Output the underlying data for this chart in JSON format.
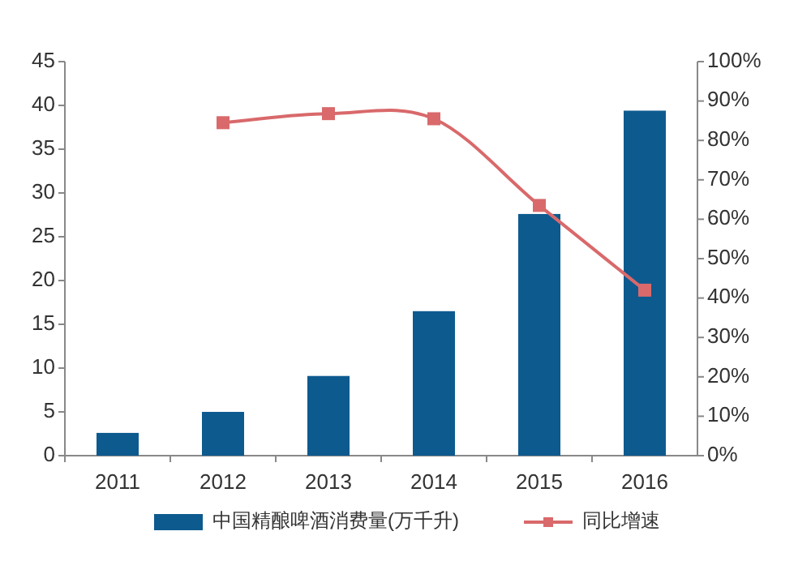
{
  "chart_data": {
    "type": "bar",
    "categories": [
      "2011",
      "2012",
      "2013",
      "2014",
      "2015",
      "2016"
    ],
    "series": [
      {
        "name": "中国精酿啤酒消费量(万千升)",
        "color": "#0d5a8f",
        "values": [
          2.6,
          5.0,
          9.1,
          16.5,
          27.6,
          39.4
        ]
      },
      {
        "name": "同比增速",
        "type": "line",
        "axis": "y2",
        "color": "#d9696b",
        "marker": "square",
        "values": [
          null,
          84.5,
          86.8,
          85.5,
          63.5,
          42
        ]
      }
    ],
    "ylim": [
      0,
      45
    ],
    "yticks": [
      0,
      5,
      10,
      15,
      20,
      25,
      30,
      35,
      40,
      45
    ],
    "y2lim": [
      0,
      100
    ],
    "y2ticks": [
      {
        "value": 0,
        "label": "0%"
      },
      {
        "value": 10,
        "label": "10%"
      },
      {
        "value": 20,
        "label": "20%"
      },
      {
        "value": 30,
        "label": "30%"
      },
      {
        "value": 40,
        "label": "40%"
      },
      {
        "value": 50,
        "label": "50%"
      },
      {
        "value": 60,
        "label": "60%"
      },
      {
        "value": 70,
        "label": "70%"
      },
      {
        "value": 80,
        "label": "80%"
      },
      {
        "value": 90,
        "label": "90%"
      },
      {
        "value": 100,
        "label": "100%"
      }
    ],
    "grid": false,
    "legend": "bottom"
  }
}
